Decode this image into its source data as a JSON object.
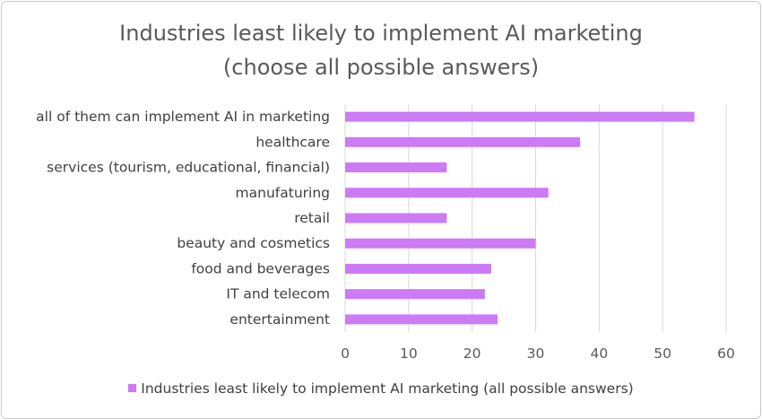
{
  "chart_data": {
    "type": "bar",
    "orientation": "horizontal",
    "title": "Industries least likely to implement AI marketing",
    "subtitle": "(choose all possible answers)",
    "categories": [
      "all of them can implement AI in marketing",
      "healthcare",
      "services (tourism, educational, financial)",
      "manufaturing",
      "retail",
      "beauty and cosmetics",
      "food and beverages",
      "IT and telecom",
      "entertainment"
    ],
    "series": [
      {
        "name": "Industries least likely to implement AI marketing (all possible answers)",
        "values": [
          55,
          37,
          16,
          32,
          16,
          30,
          23,
          22,
          24
        ]
      }
    ],
    "xlim": [
      0,
      60
    ],
    "xticks": [
      "0",
      "10",
      "20",
      "30",
      "40",
      "50",
      "60"
    ],
    "grid": "vertical",
    "legend_position": "bottom",
    "bar_color": "#cc7af5"
  }
}
